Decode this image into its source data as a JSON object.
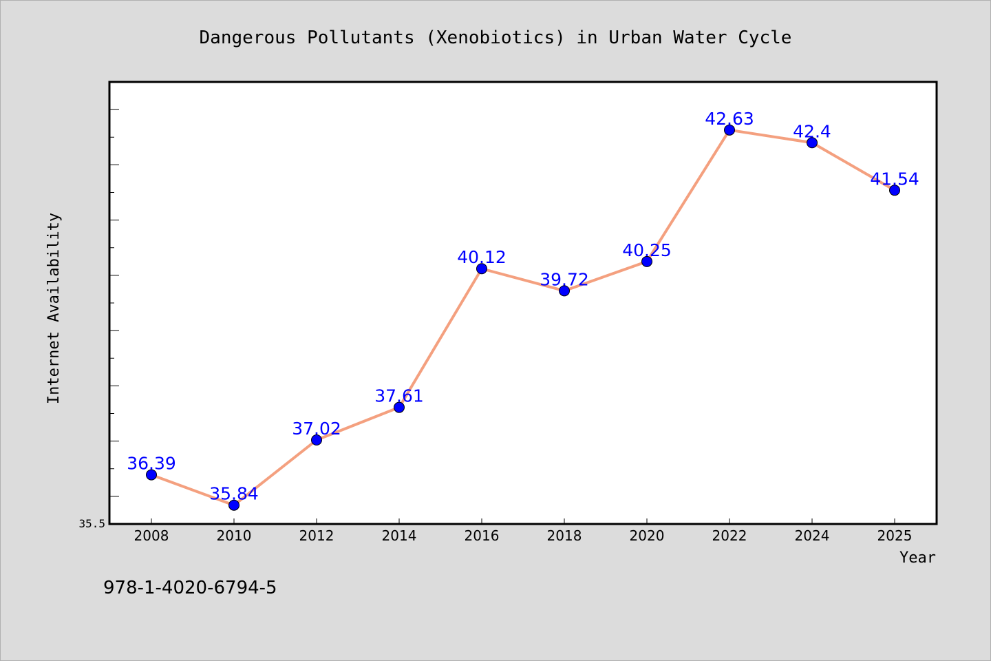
{
  "chart_data": {
    "type": "line",
    "title": "Dangerous Pollutants (Xenobiotics) in Urban Water Cycle",
    "xlabel": "Year",
    "ylabel": "Internet Availability",
    "x": [
      "2008",
      "2010",
      "2012",
      "2014",
      "2016",
      "2018",
      "2020",
      "2022",
      "2024",
      "2025"
    ],
    "series": [
      {
        "values": [
          36.39,
          35.84,
          37.02,
          37.61,
          40.12,
          39.72,
          40.25,
          42.63,
          42.4,
          41.54
        ],
        "labels": [
          "36.39",
          "35.84",
          "37.02",
          "37.61",
          "40.12",
          "39.72",
          "40.25",
          "42.63",
          "42.4",
          "41.54"
        ]
      }
    ],
    "ylim": [
      35.5,
      43.5
    ],
    "ytick_labels": [
      "35.5"
    ],
    "minor_tick_step": 0.5,
    "grid": false,
    "colors": {
      "line": "#f4a07f",
      "marker": "#0000ff",
      "marker_edge": "#000000",
      "data_label": "#0000ff",
      "plot_background": "#ffffff",
      "figure_background": "#dcdcdc"
    }
  },
  "footer": {
    "code": "978-1-4020-6794-5"
  }
}
